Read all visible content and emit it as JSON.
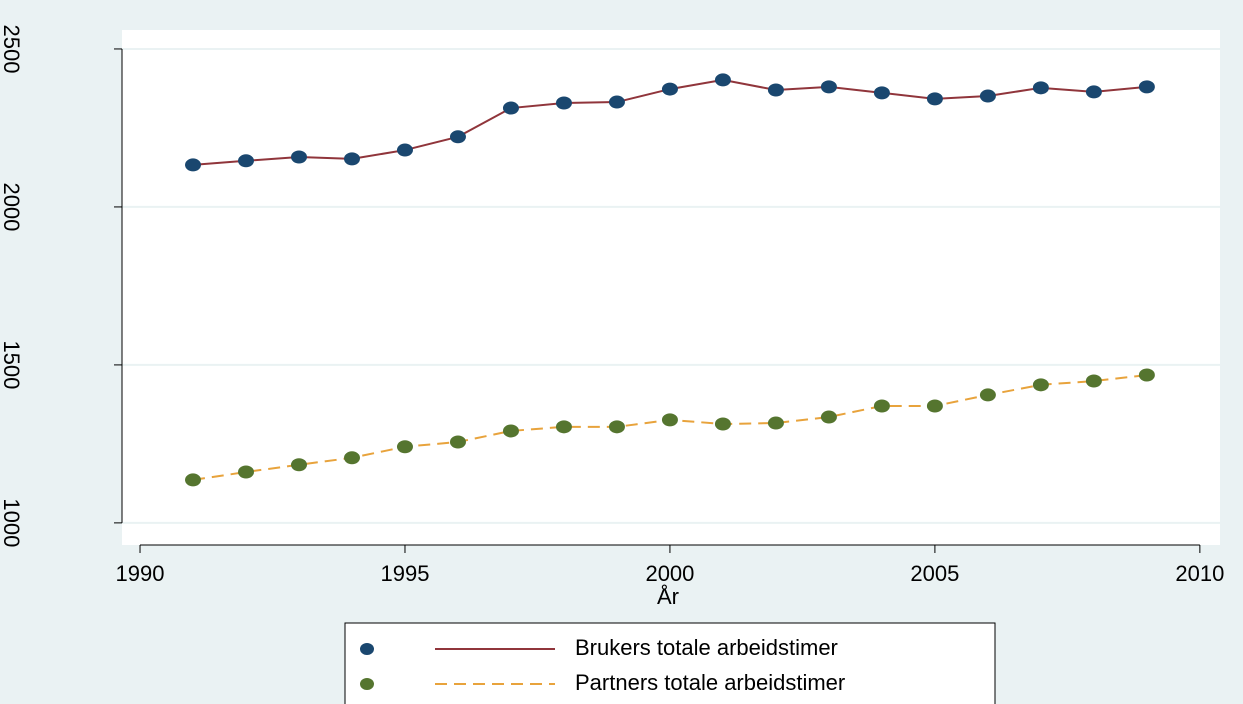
{
  "chart_data": {
    "type": "line",
    "x_label": "År",
    "x": [
      1991,
      1992,
      1993,
      1994,
      1995,
      1996,
      1997,
      1998,
      1999,
      2000,
      2001,
      2002,
      2003,
      2004,
      2005,
      2006,
      2007,
      2008,
      2009
    ],
    "series": [
      {
        "name": "Brukers totale arbeidstimer",
        "color": "#90353b",
        "marker_color": "#1a476f",
        "dash": "solid",
        "values": [
          2133,
          2146,
          2158,
          2152,
          2180,
          2222,
          2313,
          2329,
          2332,
          2373,
          2402,
          2370,
          2380,
          2361,
          2342,
          2351,
          2377,
          2364,
          2380
        ]
      },
      {
        "name": "Partners totale arbeidstimer",
        "color": "#e8a33c",
        "marker_color": "#55752f",
        "dash": "dashed",
        "values": [
          1136,
          1161,
          1184,
          1206,
          1241,
          1256,
          1291,
          1304,
          1304,
          1326,
          1313,
          1316,
          1335,
          1370,
          1370,
          1405,
          1437,
          1449,
          1468
        ]
      }
    ],
    "xlim": [
      1989.66,
      2010.38
    ],
    "xticks": [
      1990,
      1995,
      2000,
      2005,
      2010
    ],
    "ylim": [
      930,
      2560
    ],
    "yticks": [
      1000,
      1500,
      2000,
      2500
    ],
    "grid": true,
    "legend": "bottom"
  }
}
